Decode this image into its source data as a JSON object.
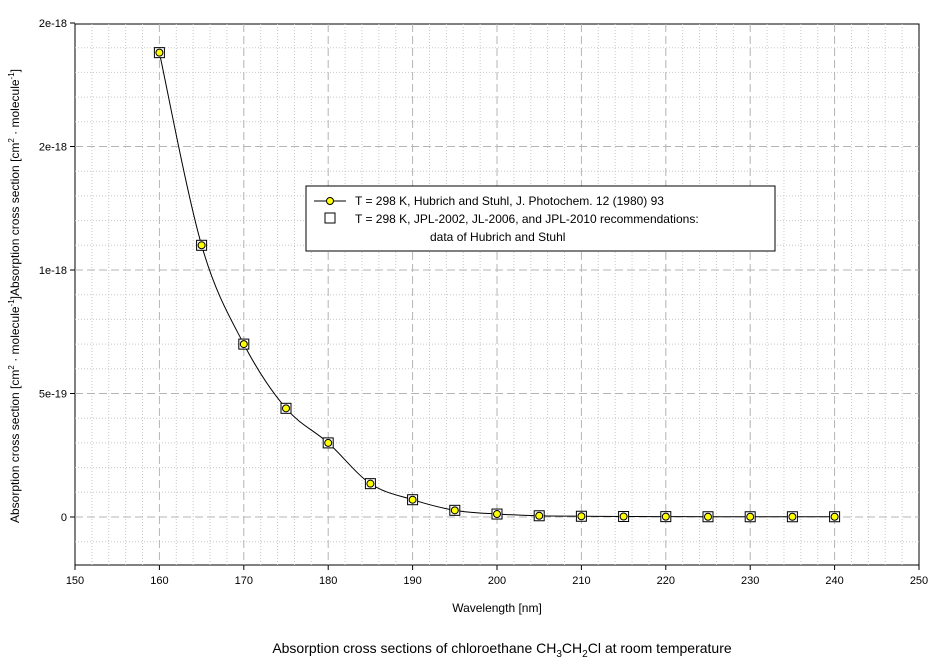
{
  "chart_data": {
    "type": "line",
    "xlabel": "Wavelength [nm]",
    "ylabel": "Absorption cross section [cm² · molecule⁻¹]",
    "x_ticks": [
      "150",
      "160",
      "170",
      "180",
      "190",
      "200",
      "210",
      "220",
      "230",
      "240",
      "250"
    ],
    "y_ticks": [
      "0",
      "5e-19",
      "1e-18",
      "2e-18",
      "2e-18"
    ],
    "xlim": [
      150,
      250
    ],
    "ylim": [
      -2e-19,
      2e-18
    ],
    "grid": true,
    "legend_placement": "center",
    "series": [
      {
        "name": "T = 298 K, Hubrich and Stuhl, J. Photochem. 12 (1980) 93",
        "marker": "circle",
        "color": "#ffff00",
        "line": true,
        "x": [
          160,
          165,
          170,
          175,
          180,
          185,
          190,
          195,
          200,
          205,
          210,
          215,
          220,
          225,
          230,
          235,
          240
        ],
        "y": [
          1.88e-18,
          1.1e-18,
          7e-19,
          4.4e-19,
          3e-19,
          1.35e-19,
          7e-20,
          2.7e-20,
          1.2e-20,
          5e-21,
          3e-21,
          2e-21,
          1.5e-21,
          1e-21,
          1e-21,
          1e-21,
          1e-21
        ]
      },
      {
        "name": "T = 298 K, JPL-2002, JL-2006, and JPL-2010 recommendations:",
        "name_line2": "data of Hubrich and Stuhl",
        "marker": "square",
        "line": false,
        "x": [
          160,
          165,
          170,
          175,
          180,
          185,
          190,
          195,
          200,
          205,
          210,
          215,
          220,
          225,
          230,
          235,
          240
        ],
        "y": [
          1.88e-18,
          1.1e-18,
          7e-19,
          4.4e-19,
          3e-19,
          1.35e-19,
          7e-20,
          2.7e-20,
          1.2e-20,
          5e-21,
          3e-21,
          2e-21,
          1.5e-21,
          1e-21,
          1e-21,
          1e-21,
          1e-21
        ]
      }
    ]
  },
  "caption": {
    "prefix": "Absorption cross sections of chloroethane CH",
    "sub1": "3",
    "mid": "CH",
    "sub2": "2",
    "suffix": "Cl at room temperature"
  }
}
